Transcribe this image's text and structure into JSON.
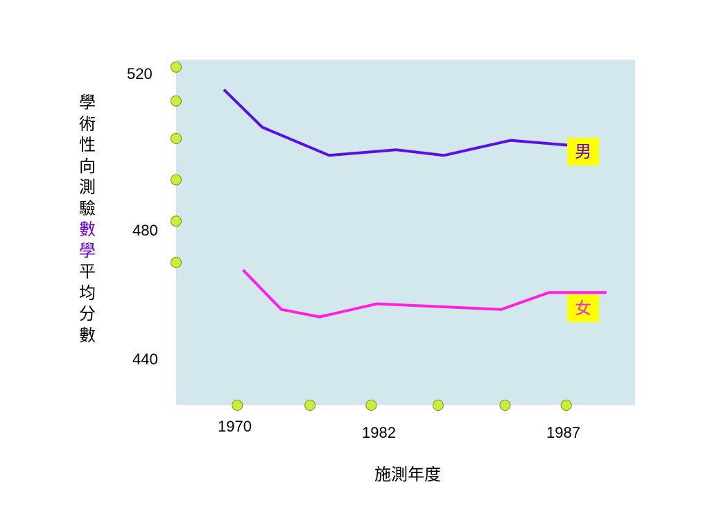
{
  "chart_data": {
    "type": "line",
    "ylabel_chars": [
      {
        "c": "學",
        "hl": false
      },
      {
        "c": "術",
        "hl": false
      },
      {
        "c": "性",
        "hl": false
      },
      {
        "c": "向",
        "hl": false
      },
      {
        "c": "測",
        "hl": false
      },
      {
        "c": "驗",
        "hl": false
      },
      {
        "c": "數",
        "hl": true
      },
      {
        "c": "學",
        "hl": true
      },
      {
        "c": "平",
        "hl": false
      },
      {
        "c": "均",
        "hl": false
      },
      {
        "c": "分",
        "hl": false
      },
      {
        "c": "數",
        "hl": false
      }
    ],
    "ylabel": "學術性向測驗數學平均分數",
    "xlabel": "施測年度",
    "ylim": [
      430,
      522
    ],
    "xlim": [
      1966.5,
      1990.5
    ],
    "y_ticks": [
      520,
      480,
      440
    ],
    "x_ticks": [
      1970,
      1982,
      1987
    ],
    "series": [
      {
        "name": "男",
        "color": "#5b0fe8",
        "label_color": "#6a00d0",
        "x": [
          1969,
          1971,
          1974.5,
          1978,
          1980.5,
          1984,
          1987.5
        ],
        "y": [
          514,
          504,
          496.5,
          498,
          496.5,
          500.5,
          499
        ]
      },
      {
        "name": "女",
        "color": "#ff1fe0",
        "label_color": "#ff1fe0",
        "x": [
          1970,
          1972,
          1974,
          1977,
          1983.5,
          1986,
          1989
        ],
        "y": [
          466,
          455.5,
          453.5,
          457,
          455.5,
          460,
          460
        ]
      }
    ],
    "marker_color": "#c8f03a",
    "background": "#d2e8ec"
  }
}
